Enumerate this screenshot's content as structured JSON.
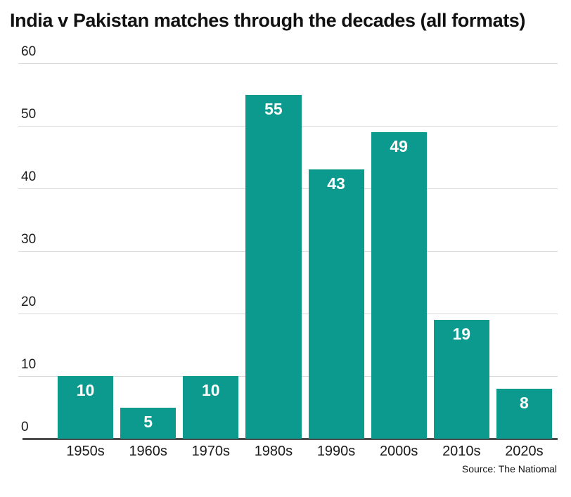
{
  "title": "India v Pakistan matches through the decades (all formats)",
  "source": "Source: The Natiomal",
  "colors": {
    "bar": "#0d9a8e",
    "gridline": "#d8d8d8",
    "baseline": "#4d4d4d",
    "value_label": "#ffffff",
    "tick_text": "#1a1a1a",
    "title_text": "#111111"
  },
  "chart_data": {
    "type": "bar",
    "title": "India v Pakistan matches through the decades (all formats)",
    "categories": [
      "1950s",
      "1960s",
      "1970s",
      "1980s",
      "1990s",
      "2000s",
      "2010s",
      "2020s"
    ],
    "values": [
      10,
      5,
      10,
      55,
      43,
      49,
      19,
      8
    ],
    "xlabel": "",
    "ylabel": "",
    "ylim": [
      0,
      60
    ],
    "yticks": [
      0,
      10,
      20,
      30,
      40,
      50,
      60
    ],
    "grid": true,
    "legend": false,
    "value_label_position": "inside-top",
    "source": "Source: The Natiomal"
  }
}
